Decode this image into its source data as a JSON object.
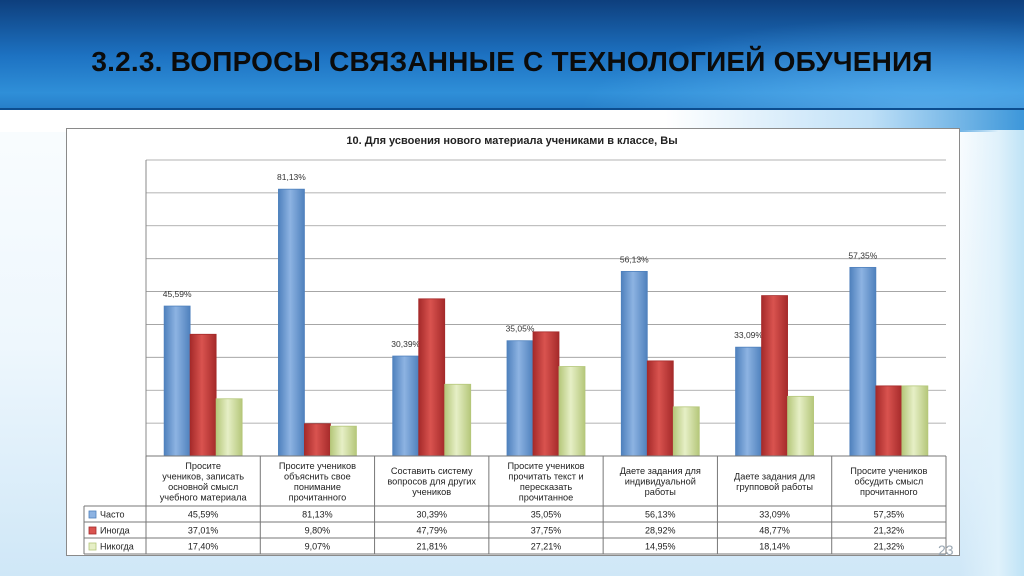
{
  "slide": {
    "title": "3.2.3. ВОПРОСЫ СВЯЗАННЫЕ С  ТЕХНОЛОГИЕЙ ОБУЧЕНИЯ",
    "page_number": "23"
  },
  "chart_data": {
    "type": "bar",
    "title": "10. Для усвоения нового материала учениками в классе, Вы",
    "categories": [
      [
        "Просите",
        "учеников, записать",
        "основной смысл",
        "учебного материала"
      ],
      [
        "Просите учеников",
        "объяснить свое",
        "понимание",
        "прочитанного"
      ],
      [
        "Составить систему",
        "вопросов для других",
        "учеников"
      ],
      [
        "Просите учеников",
        "прочитать текст и",
        "пересказать",
        "прочитанное"
      ],
      [
        "Даете задания  для",
        "индивидуальной",
        "работы"
      ],
      [
        "Даете задания  для",
        "групповой работы"
      ],
      [
        "Просите учеников",
        "обсудить смысл",
        "прочитанного"
      ]
    ],
    "series": [
      {
        "name": "Часто",
        "values": [
          45.59,
          81.13,
          30.39,
          35.05,
          56.13,
          33.09,
          57.35
        ],
        "labels": [
          "45,59%",
          "81,13%",
          "30,39%",
          "35,05%",
          "56,13%",
          "33,09%",
          "57,35%"
        ],
        "color": "#8db3e2",
        "color_dark": "#4f81bd"
      },
      {
        "name": "Иногда",
        "values": [
          37.01,
          9.8,
          47.79,
          37.75,
          28.92,
          48.77,
          21.32
        ],
        "labels": [
          "37,01%",
          "9,80%",
          "47,79%",
          "37,75%",
          "28,92%",
          "48,77%",
          "21,32%"
        ],
        "color": "#d9534f",
        "color_dark": "#a52a2a"
      },
      {
        "name": "Никогда",
        "values": [
          17.4,
          9.07,
          21.81,
          27.21,
          14.95,
          18.14,
          21.32
        ],
        "labels": [
          "17,40%",
          "9,07%",
          "21,81%",
          "27,21%",
          "14,95%",
          "18,14%",
          "21,32%"
        ],
        "color": "#e6efc6",
        "color_dark": "#b5c77a"
      }
    ],
    "data_labels_series": "Часто",
    "ylim": [
      0,
      90
    ],
    "grid": true,
    "legend": "table-left"
  }
}
